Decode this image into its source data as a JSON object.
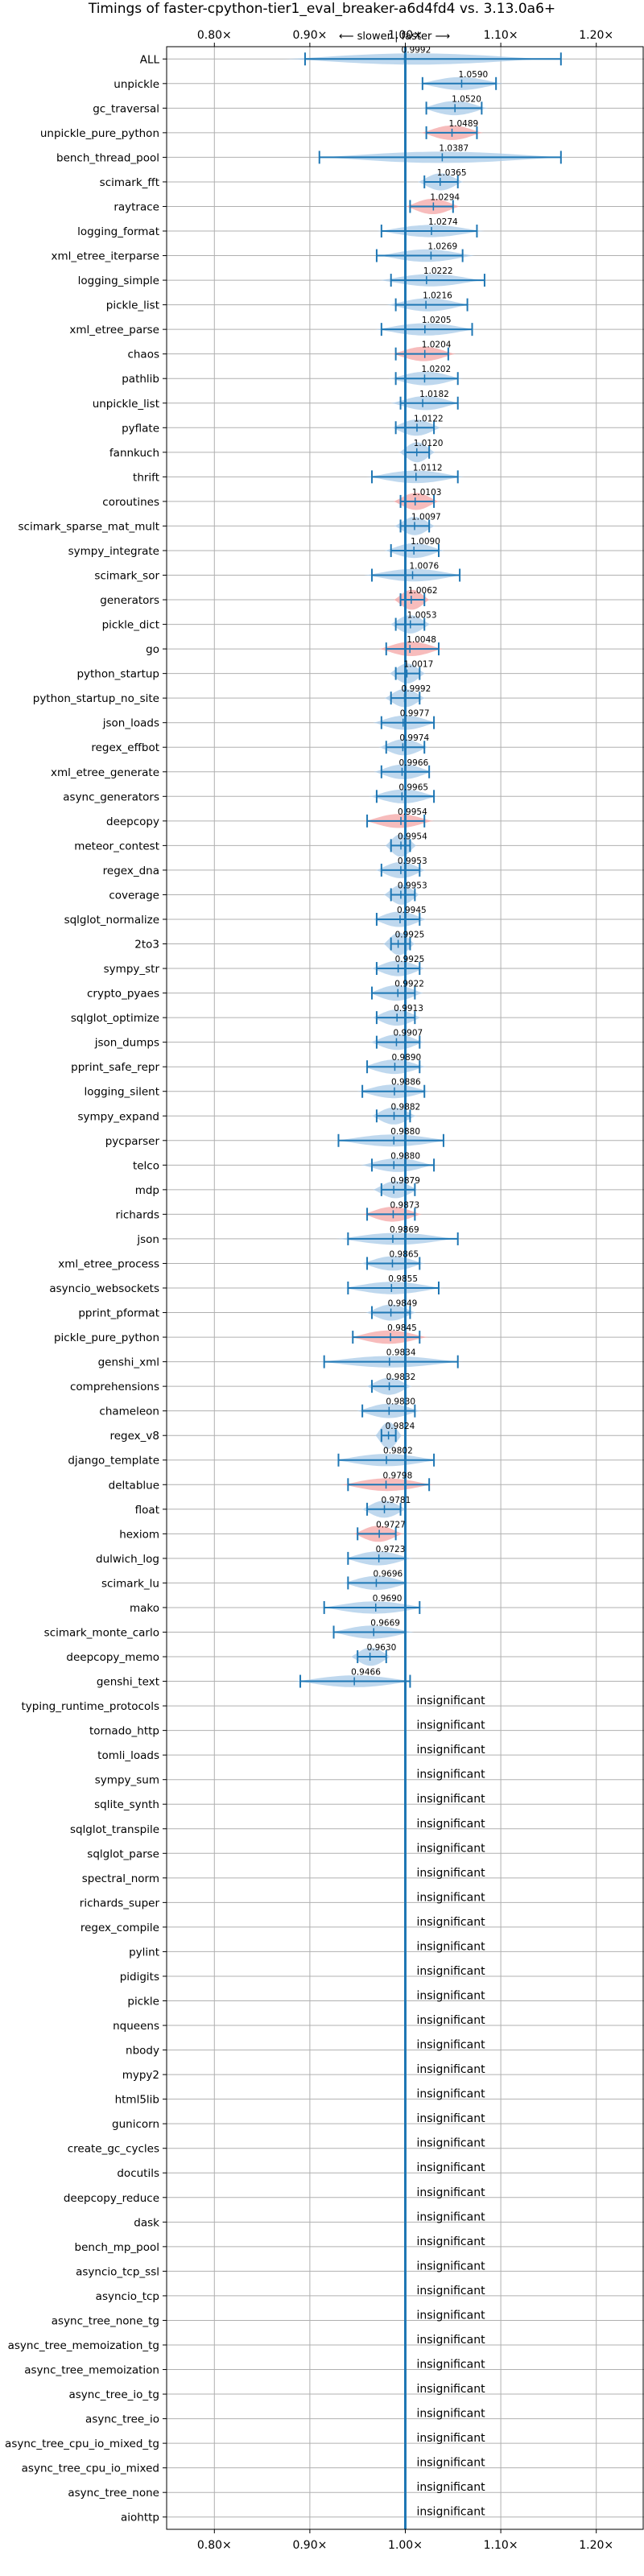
{
  "chart_data": {
    "type": "violin",
    "title": "Timings of faster-cpython-tier1_eval_breaker-a6d4fd4 vs. 3.13.0a6+",
    "xlim": [
      0.75,
      1.25
    ],
    "x_ticks": [
      0.8,
      0.9,
      1.0,
      1.1,
      1.2
    ],
    "x_tick_labels": [
      "0.80×",
      "0.90×",
      "1.00×",
      "1.10×",
      "1.20×"
    ],
    "reference_line": 1.0,
    "direction_annotation": "⟵ slower | faster ⟶",
    "grid": true,
    "colors": {
      "faster": "#a9cbe8",
      "slower": "#f4a6a6",
      "whisker": "#1f77b4",
      "reference": "#1f77b4"
    },
    "insignificant_label": "insignificant",
    "benchmarks": [
      {
        "name": "ALL",
        "value": 0.9992,
        "label": "0.9992",
        "min": 0.895,
        "max": 1.163,
        "color": "blue",
        "significant": true
      },
      {
        "name": "unpickle",
        "value": 1.059,
        "label": "1.0590",
        "min": 1.018,
        "max": 1.095,
        "color": "blue",
        "significant": true
      },
      {
        "name": "gc_traversal",
        "value": 1.052,
        "label": "1.0520",
        "min": 1.022,
        "max": 1.08,
        "color": "blue",
        "significant": true
      },
      {
        "name": "unpickle_pure_python",
        "value": 1.0489,
        "label": "1.0489",
        "min": 1.022,
        "max": 1.075,
        "color": "red",
        "significant": true
      },
      {
        "name": "bench_thread_pool",
        "value": 1.0387,
        "label": "1.0387",
        "min": 0.91,
        "max": 1.163,
        "color": "blue",
        "significant": true
      },
      {
        "name": "scimark_fft",
        "value": 1.0365,
        "label": "1.0365",
        "min": 1.02,
        "max": 1.055,
        "color": "blue",
        "significant": true
      },
      {
        "name": "raytrace",
        "value": 1.0294,
        "label": "1.0294",
        "min": 1.005,
        "max": 1.05,
        "color": "red",
        "significant": true
      },
      {
        "name": "logging_format",
        "value": 1.0274,
        "label": "1.0274",
        "min": 0.975,
        "max": 1.075,
        "color": "blue",
        "significant": true
      },
      {
        "name": "xml_etree_iterparse",
        "value": 1.0269,
        "label": "1.0269",
        "min": 0.97,
        "max": 1.06,
        "color": "blue",
        "significant": true
      },
      {
        "name": "logging_simple",
        "value": 1.0222,
        "label": "1.0222",
        "min": 0.985,
        "max": 1.083,
        "color": "blue",
        "significant": true
      },
      {
        "name": "pickle_list",
        "value": 1.0216,
        "label": "1.0216",
        "min": 0.99,
        "max": 1.065,
        "color": "blue",
        "significant": true
      },
      {
        "name": "xml_etree_parse",
        "value": 1.0205,
        "label": "1.0205",
        "min": 0.975,
        "max": 1.07,
        "color": "blue",
        "significant": true
      },
      {
        "name": "chaos",
        "value": 1.0204,
        "label": "1.0204",
        "min": 0.99,
        "max": 1.045,
        "color": "red",
        "significant": true
      },
      {
        "name": "pathlib",
        "value": 1.0202,
        "label": "1.0202",
        "min": 0.99,
        "max": 1.055,
        "color": "blue",
        "significant": true
      },
      {
        "name": "unpickle_list",
        "value": 1.0182,
        "label": "1.0182",
        "min": 0.995,
        "max": 1.055,
        "color": "blue",
        "significant": true
      },
      {
        "name": "pyflate",
        "value": 1.0122,
        "label": "1.0122",
        "min": 0.99,
        "max": 1.03,
        "color": "blue",
        "significant": true
      },
      {
        "name": "fannkuch",
        "value": 1.012,
        "label": "1.0120",
        "min": 1.0,
        "max": 1.025,
        "color": "blue",
        "significant": true
      },
      {
        "name": "thrift",
        "value": 1.0112,
        "label": "1.0112",
        "min": 0.965,
        "max": 1.055,
        "color": "blue",
        "significant": true
      },
      {
        "name": "coroutines",
        "value": 1.0103,
        "label": "1.0103",
        "min": 0.995,
        "max": 1.03,
        "color": "red",
        "significant": true
      },
      {
        "name": "scimark_sparse_mat_mult",
        "value": 1.0097,
        "label": "1.0097",
        "min": 0.995,
        "max": 1.025,
        "color": "blue",
        "significant": true
      },
      {
        "name": "sympy_integrate",
        "value": 1.009,
        "label": "1.0090",
        "min": 0.985,
        "max": 1.035,
        "color": "blue",
        "significant": true
      },
      {
        "name": "scimark_sor",
        "value": 1.0076,
        "label": "1.0076",
        "min": 0.965,
        "max": 1.057,
        "color": "blue",
        "significant": true
      },
      {
        "name": "generators",
        "value": 1.0062,
        "label": "1.0062",
        "min": 0.995,
        "max": 1.02,
        "color": "red",
        "significant": true
      },
      {
        "name": "pickle_dict",
        "value": 1.0053,
        "label": "1.0053",
        "min": 0.99,
        "max": 1.02,
        "color": "blue",
        "significant": true
      },
      {
        "name": "go",
        "value": 1.0048,
        "label": "1.0048",
        "min": 0.98,
        "max": 1.035,
        "color": "red",
        "significant": true
      },
      {
        "name": "python_startup",
        "value": 1.0017,
        "label": "1.0017",
        "min": 0.99,
        "max": 1.015,
        "color": "blue",
        "significant": true
      },
      {
        "name": "python_startup_no_site",
        "value": 0.9992,
        "label": "0.9992",
        "min": 0.985,
        "max": 1.015,
        "color": "blue",
        "significant": true
      },
      {
        "name": "json_loads",
        "value": 0.9977,
        "label": "0.9977",
        "min": 0.975,
        "max": 1.03,
        "color": "blue",
        "significant": true
      },
      {
        "name": "regex_effbot",
        "value": 0.9974,
        "label": "0.9974",
        "min": 0.98,
        "max": 1.02,
        "color": "blue",
        "significant": true
      },
      {
        "name": "xml_etree_generate",
        "value": 0.9966,
        "label": "0.9966",
        "min": 0.975,
        "max": 1.025,
        "color": "blue",
        "significant": true
      },
      {
        "name": "async_generators",
        "value": 0.9965,
        "label": "0.9965",
        "min": 0.97,
        "max": 1.03,
        "color": "blue",
        "significant": true
      },
      {
        "name": "deepcopy",
        "value": 0.9954,
        "label": "0.9954",
        "min": 0.96,
        "max": 1.02,
        "color": "red",
        "significant": true
      },
      {
        "name": "meteor_contest",
        "value": 0.9954,
        "label": "0.9954",
        "min": 0.985,
        "max": 1.005,
        "color": "blue",
        "significant": true
      },
      {
        "name": "regex_dna",
        "value": 0.9953,
        "label": "0.9953",
        "min": 0.975,
        "max": 1.015,
        "color": "blue",
        "significant": true
      },
      {
        "name": "coverage",
        "value": 0.9953,
        "label": "0.9953",
        "min": 0.985,
        "max": 1.01,
        "color": "blue",
        "significant": true
      },
      {
        "name": "sqlglot_normalize",
        "value": 0.9945,
        "label": "0.9945",
        "min": 0.97,
        "max": 1.015,
        "color": "blue",
        "significant": true
      },
      {
        "name": "2to3",
        "value": 0.9925,
        "label": "0.9925",
        "min": 0.985,
        "max": 1.005,
        "color": "blue",
        "significant": true
      },
      {
        "name": "sympy_str",
        "value": 0.9925,
        "label": "0.9925",
        "min": 0.97,
        "max": 1.015,
        "color": "blue",
        "significant": true
      },
      {
        "name": "crypto_pyaes",
        "value": 0.9922,
        "label": "0.9922",
        "min": 0.965,
        "max": 1.01,
        "color": "blue",
        "significant": true
      },
      {
        "name": "sqlglot_optimize",
        "value": 0.9913,
        "label": "0.9913",
        "min": 0.97,
        "max": 1.01,
        "color": "blue",
        "significant": true
      },
      {
        "name": "json_dumps",
        "value": 0.9907,
        "label": "0.9907",
        "min": 0.97,
        "max": 1.015,
        "color": "blue",
        "significant": true
      },
      {
        "name": "pprint_safe_repr",
        "value": 0.989,
        "label": "0.9890",
        "min": 0.96,
        "max": 1.015,
        "color": "blue",
        "significant": true
      },
      {
        "name": "logging_silent",
        "value": 0.9886,
        "label": "0.9886",
        "min": 0.955,
        "max": 1.02,
        "color": "blue",
        "significant": true
      },
      {
        "name": "sympy_expand",
        "value": 0.9882,
        "label": "0.9882",
        "min": 0.97,
        "max": 1.005,
        "color": "blue",
        "significant": true
      },
      {
        "name": "pycparser",
        "value": 0.988,
        "label": "0.9880",
        "min": 0.93,
        "max": 1.04,
        "color": "blue",
        "significant": true
      },
      {
        "name": "telco",
        "value": 0.988,
        "label": "0.9880",
        "min": 0.965,
        "max": 1.03,
        "color": "blue",
        "significant": true
      },
      {
        "name": "mdp",
        "value": 0.9879,
        "label": "0.9879",
        "min": 0.975,
        "max": 1.01,
        "color": "blue",
        "significant": true
      },
      {
        "name": "richards",
        "value": 0.9873,
        "label": "0.9873",
        "min": 0.96,
        "max": 1.01,
        "color": "red",
        "significant": true
      },
      {
        "name": "json",
        "value": 0.9869,
        "label": "0.9869",
        "min": 0.94,
        "max": 1.055,
        "color": "blue",
        "significant": true
      },
      {
        "name": "xml_etree_process",
        "value": 0.9865,
        "label": "0.9865",
        "min": 0.96,
        "max": 1.015,
        "color": "blue",
        "significant": true
      },
      {
        "name": "asyncio_websockets",
        "value": 0.9855,
        "label": "0.9855",
        "min": 0.94,
        "max": 1.035,
        "color": "blue",
        "significant": true
      },
      {
        "name": "pprint_pformat",
        "value": 0.9849,
        "label": "0.9849",
        "min": 0.965,
        "max": 1.005,
        "color": "blue",
        "significant": true
      },
      {
        "name": "pickle_pure_python",
        "value": 0.9845,
        "label": "0.9845",
        "min": 0.945,
        "max": 1.015,
        "color": "red",
        "significant": true
      },
      {
        "name": "genshi_xml",
        "value": 0.9834,
        "label": "0.9834",
        "min": 0.915,
        "max": 1.055,
        "color": "blue",
        "significant": true
      },
      {
        "name": "comprehensions",
        "value": 0.9832,
        "label": "0.9832",
        "min": 0.965,
        "max": 1.0,
        "color": "blue",
        "significant": true
      },
      {
        "name": "chameleon",
        "value": 0.983,
        "label": "0.9830",
        "min": 0.955,
        "max": 1.01,
        "color": "blue",
        "significant": true
      },
      {
        "name": "regex_v8",
        "value": 0.9824,
        "label": "0.9824",
        "min": 0.975,
        "max": 0.99,
        "color": "blue",
        "significant": true
      },
      {
        "name": "django_template",
        "value": 0.9802,
        "label": "0.9802",
        "min": 0.93,
        "max": 1.03,
        "color": "blue",
        "significant": true
      },
      {
        "name": "deltablue",
        "value": 0.9798,
        "label": "0.9798",
        "min": 0.94,
        "max": 1.025,
        "color": "red",
        "significant": true
      },
      {
        "name": "float",
        "value": 0.9781,
        "label": "0.9781",
        "min": 0.96,
        "max": 0.995,
        "color": "blue",
        "significant": true
      },
      {
        "name": "hexiom",
        "value": 0.9727,
        "label": "0.9727",
        "min": 0.95,
        "max": 0.99,
        "color": "red",
        "significant": true
      },
      {
        "name": "dulwich_log",
        "value": 0.9723,
        "label": "0.9723",
        "min": 0.94,
        "max": 1.0,
        "color": "blue",
        "significant": true
      },
      {
        "name": "scimark_lu",
        "value": 0.9696,
        "label": "0.9696",
        "min": 0.94,
        "max": 1.0,
        "color": "blue",
        "significant": true
      },
      {
        "name": "mako",
        "value": 0.969,
        "label": "0.9690",
        "min": 0.915,
        "max": 1.015,
        "color": "blue",
        "significant": true
      },
      {
        "name": "scimark_monte_carlo",
        "value": 0.9669,
        "label": "0.9669",
        "min": 0.925,
        "max": 1.0,
        "color": "blue",
        "significant": true
      },
      {
        "name": "deepcopy_memo",
        "value": 0.963,
        "label": "0.9630",
        "min": 0.95,
        "max": 0.98,
        "color": "blue",
        "significant": true
      },
      {
        "name": "genshi_text",
        "value": 0.9466,
        "label": "0.9466",
        "min": 0.89,
        "max": 1.005,
        "color": "blue",
        "significant": true
      },
      {
        "name": "typing_runtime_protocols",
        "significant": false
      },
      {
        "name": "tornado_http",
        "significant": false
      },
      {
        "name": "tomli_loads",
        "significant": false
      },
      {
        "name": "sympy_sum",
        "significant": false
      },
      {
        "name": "sqlite_synth",
        "significant": false
      },
      {
        "name": "sqlglot_transpile",
        "significant": false
      },
      {
        "name": "sqlglot_parse",
        "significant": false
      },
      {
        "name": "spectral_norm",
        "significant": false
      },
      {
        "name": "richards_super",
        "significant": false
      },
      {
        "name": "regex_compile",
        "significant": false
      },
      {
        "name": "pylint",
        "significant": false
      },
      {
        "name": "pidigits",
        "significant": false
      },
      {
        "name": "pickle",
        "significant": false
      },
      {
        "name": "nqueens",
        "significant": false
      },
      {
        "name": "nbody",
        "significant": false
      },
      {
        "name": "mypy2",
        "significant": false
      },
      {
        "name": "html5lib",
        "significant": false
      },
      {
        "name": "gunicorn",
        "significant": false
      },
      {
        "name": "create_gc_cycles",
        "significant": false
      },
      {
        "name": "docutils",
        "significant": false
      },
      {
        "name": "deepcopy_reduce",
        "significant": false
      },
      {
        "name": "dask",
        "significant": false
      },
      {
        "name": "bench_mp_pool",
        "significant": false
      },
      {
        "name": "asyncio_tcp_ssl",
        "significant": false
      },
      {
        "name": "asyncio_tcp",
        "significant": false
      },
      {
        "name": "async_tree_none_tg",
        "significant": false
      },
      {
        "name": "async_tree_memoization_tg",
        "significant": false
      },
      {
        "name": "async_tree_memoization",
        "significant": false
      },
      {
        "name": "async_tree_io_tg",
        "significant": false
      },
      {
        "name": "async_tree_io",
        "significant": false
      },
      {
        "name": "async_tree_cpu_io_mixed_tg",
        "significant": false
      },
      {
        "name": "async_tree_cpu_io_mixed",
        "significant": false
      },
      {
        "name": "async_tree_none",
        "significant": false
      },
      {
        "name": "aiohttp",
        "significant": false
      }
    ]
  }
}
